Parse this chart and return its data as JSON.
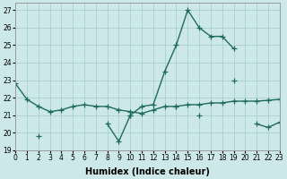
{
  "background_color": "#cce8e8",
  "grid_color": "#aacfcf",
  "line_color": "#1e6b5e",
  "line1_y": [
    22.8,
    21.9,
    21.5,
    21.2,
    21.3,
    21.5,
    21.6,
    21.5,
    21.5,
    21.3,
    21.2,
    21.1,
    21.3,
    21.5,
    21.5,
    21.6,
    21.6,
    21.7,
    21.7,
    21.8,
    21.8,
    21.8,
    21.85,
    21.9
  ],
  "line2_y": [
    null,
    null,
    19.8,
    null,
    null,
    null,
    null,
    null,
    20.5,
    19.5,
    21.0,
    21.5,
    21.6,
    23.5,
    25.0,
    27.0,
    26.0,
    25.5,
    25.5,
    24.8,
    null,
    null,
    null,
    null
  ],
  "line3_y": [
    null,
    null,
    null,
    null,
    null,
    null,
    null,
    null,
    null,
    null,
    21.0,
    null,
    null,
    null,
    21.5,
    null,
    21.0,
    null,
    null,
    23.0,
    null,
    20.5,
    20.3,
    20.6
  ],
  "xlim": [
    0,
    23
  ],
  "ylim": [
    19.0,
    27.4
  ],
  "yticks": [
    19,
    20,
    21,
    22,
    23,
    24,
    25,
    26,
    27
  ],
  "xticks": [
    0,
    1,
    2,
    3,
    4,
    5,
    6,
    7,
    8,
    9,
    10,
    11,
    12,
    13,
    14,
    15,
    16,
    17,
    18,
    19,
    20,
    21,
    22,
    23
  ],
  "xlabel": "Humidex (Indice chaleur)",
  "xlabel_fontsize": 7,
  "tick_fontsize": 5.5,
  "marker": "+",
  "markersize": 4,
  "linewidth": 1.0
}
